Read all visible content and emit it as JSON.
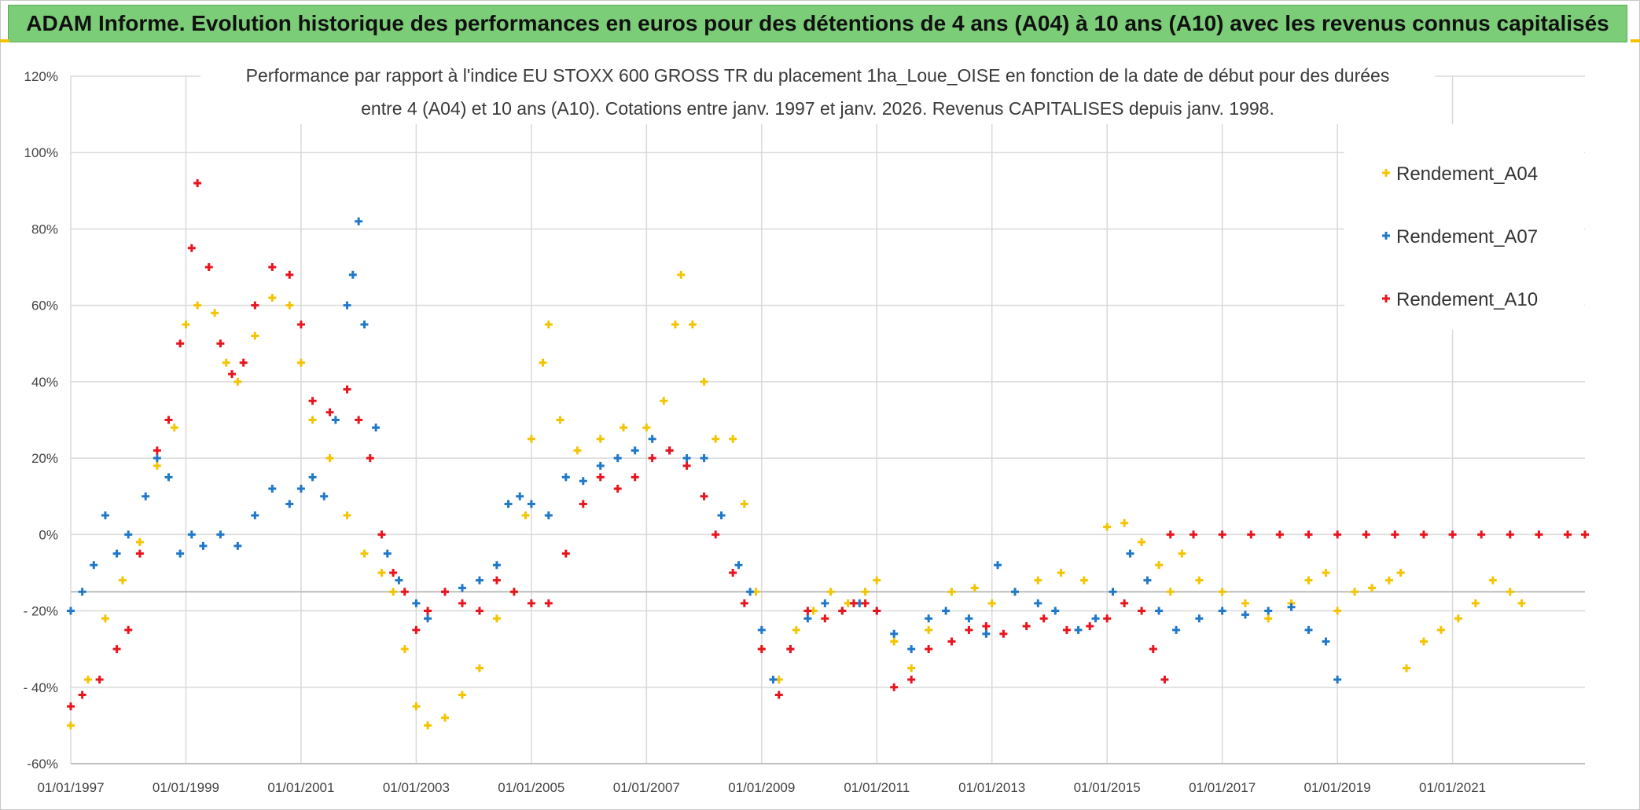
{
  "banner": {
    "title": "ADAM Informe. Evolution historique des performances en euros pour des détentions de 4 ans (A04) à 10 ans (A10) avec les revenus connus capitalisés"
  },
  "colors": {
    "banner_bg": "#7ccd78",
    "a04": "#f5c400",
    "a07": "#1f78c8",
    "a10": "#e8141e",
    "grid": "#d9d9d9"
  },
  "chart_data": {
    "type": "scatter",
    "title_line1": "Performance par rapport à l'indice EU STOXX 600 GROSS TR  du placement 1ha_Loue_OISE en fonction de la date de début pour des durées",
    "title_line2": "entre 4 (A04) et 10 ans (A10). Cotations entre janv. 1997 et janv. 2026. Revenus CAPITALISES depuis janv. 1998.",
    "xlabel": "",
    "ylabel": "",
    "xlim": [
      1997.0,
      2023.3
    ],
    "ylim": [
      -60,
      120
    ],
    "x_ticks": [
      1997,
      1999,
      2001,
      2003,
      2005,
      2007,
      2009,
      2011,
      2013,
      2015,
      2017,
      2019,
      2021
    ],
    "x_tick_labels": [
      "01/01/1997",
      "01/01/1999",
      "01/01/2001",
      "01/01/2003",
      "01/01/2005",
      "01/01/2007",
      "01/01/2009",
      "01/01/2011",
      "01/01/2013",
      "01/01/2015",
      "01/01/2017",
      "01/01/2019",
      "01/01/2021"
    ],
    "y_ticks": [
      -60,
      -40,
      -20,
      0,
      20,
      40,
      60,
      80,
      100,
      120
    ],
    "y_tick_labels": [
      "-60%",
      "- 40%",
      "- 20%",
      "0%",
      "20%",
      "40%",
      "60%",
      "80%",
      "100%",
      "120%"
    ],
    "legend_position": "top-right",
    "series": [
      {
        "name": "Rendement_A04",
        "points": [
          [
            1997.0,
            -50
          ],
          [
            1997.3,
            -38
          ],
          [
            1997.6,
            -22
          ],
          [
            1997.9,
            -12
          ],
          [
            1998.2,
            -2
          ],
          [
            1998.5,
            18
          ],
          [
            1998.8,
            28
          ],
          [
            1999.0,
            55
          ],
          [
            1999.2,
            60
          ],
          [
            1999.5,
            58
          ],
          [
            1999.7,
            45
          ],
          [
            1999.9,
            40
          ],
          [
            2000.2,
            52
          ],
          [
            2000.5,
            62
          ],
          [
            2000.8,
            60
          ],
          [
            2001.0,
            45
          ],
          [
            2001.2,
            30
          ],
          [
            2001.5,
            20
          ],
          [
            2001.8,
            5
          ],
          [
            2002.1,
            -5
          ],
          [
            2002.4,
            -10
          ],
          [
            2002.6,
            -15
          ],
          [
            2002.8,
            -30
          ],
          [
            2003.0,
            -45
          ],
          [
            2003.2,
            -50
          ],
          [
            2003.5,
            -48
          ],
          [
            2003.8,
            -42
          ],
          [
            2004.1,
            -35
          ],
          [
            2004.4,
            -22
          ],
          [
            2004.7,
            -15
          ],
          [
            2004.9,
            5
          ],
          [
            2005.0,
            25
          ],
          [
            2005.2,
            45
          ],
          [
            2005.3,
            55
          ],
          [
            2005.5,
            30
          ],
          [
            2005.8,
            22
          ],
          [
            2006.2,
            25
          ],
          [
            2006.6,
            28
          ],
          [
            2007.0,
            28
          ],
          [
            2007.3,
            35
          ],
          [
            2007.5,
            55
          ],
          [
            2007.6,
            68
          ],
          [
            2007.8,
            55
          ],
          [
            2008.0,
            40
          ],
          [
            2008.2,
            25
          ],
          [
            2008.5,
            25
          ],
          [
            2008.7,
            8
          ],
          [
            2008.9,
            -15
          ],
          [
            2009.0,
            -30
          ],
          [
            2009.3,
            -38
          ],
          [
            2009.6,
            -25
          ],
          [
            2009.9,
            -20
          ],
          [
            2010.2,
            -15
          ],
          [
            2010.5,
            -18
          ],
          [
            2010.8,
            -15
          ],
          [
            2011.0,
            -12
          ],
          [
            2011.3,
            -28
          ],
          [
            2011.6,
            -35
          ],
          [
            2011.9,
            -25
          ],
          [
            2012.3,
            -15
          ],
          [
            2012.7,
            -14
          ],
          [
            2013.0,
            -18
          ],
          [
            2013.4,
            -15
          ],
          [
            2013.8,
            -12
          ],
          [
            2014.2,
            -10
          ],
          [
            2014.6,
            -12
          ],
          [
            2015.0,
            2
          ],
          [
            2015.3,
            3
          ],
          [
            2015.6,
            -2
          ],
          [
            2015.9,
            -8
          ],
          [
            2016.1,
            -15
          ],
          [
            2016.3,
            -5
          ],
          [
            2016.6,
            -12
          ],
          [
            2017.0,
            -15
          ],
          [
            2017.4,
            -18
          ],
          [
            2017.8,
            -22
          ],
          [
            2018.2,
            -18
          ],
          [
            2018.5,
            -12
          ],
          [
            2018.8,
            -10
          ],
          [
            2019.0,
            -20
          ],
          [
            2019.3,
            -15
          ],
          [
            2019.6,
            -14
          ],
          [
            2019.9,
            -12
          ],
          [
            2020.1,
            -10
          ],
          [
            2020.2,
            -35
          ],
          [
            2020.5,
            -28
          ],
          [
            2020.8,
            -25
          ],
          [
            2021.1,
            -22
          ],
          [
            2021.4,
            -18
          ],
          [
            2021.7,
            -12
          ],
          [
            2022.0,
            -15
          ],
          [
            2022.2,
            -18
          ]
        ]
      },
      {
        "name": "Rendement_A07",
        "points": [
          [
            1997.0,
            -20
          ],
          [
            1997.2,
            -15
          ],
          [
            1997.4,
            -8
          ],
          [
            1997.6,
            5
          ],
          [
            1997.8,
            -5
          ],
          [
            1998.0,
            0
          ],
          [
            1998.3,
            10
          ],
          [
            1998.5,
            20
          ],
          [
            1998.7,
            15
          ],
          [
            1998.9,
            -5
          ],
          [
            1999.1,
            0
          ],
          [
            1999.3,
            -3
          ],
          [
            1999.6,
            0
          ],
          [
            1999.9,
            -3
          ],
          [
            2000.2,
            5
          ],
          [
            2000.5,
            12
          ],
          [
            2000.8,
            8
          ],
          [
            2001.0,
            12
          ],
          [
            2001.2,
            15
          ],
          [
            2001.4,
            10
          ],
          [
            2001.6,
            30
          ],
          [
            2001.8,
            60
          ],
          [
            2001.9,
            68
          ],
          [
            2002.0,
            82
          ],
          [
            2002.1,
            55
          ],
          [
            2002.3,
            28
          ],
          [
            2002.5,
            -5
          ],
          [
            2002.7,
            -12
          ],
          [
            2003.0,
            -18
          ],
          [
            2003.2,
            -22
          ],
          [
            2003.5,
            -15
          ],
          [
            2003.8,
            -14
          ],
          [
            2004.1,
            -12
          ],
          [
            2004.4,
            -8
          ],
          [
            2004.6,
            8
          ],
          [
            2004.8,
            10
          ],
          [
            2005.0,
            8
          ],
          [
            2005.3,
            5
          ],
          [
            2005.6,
            15
          ],
          [
            2005.9,
            14
          ],
          [
            2006.2,
            18
          ],
          [
            2006.5,
            20
          ],
          [
            2006.8,
            22
          ],
          [
            2007.1,
            25
          ],
          [
            2007.4,
            22
          ],
          [
            2007.7,
            20
          ],
          [
            2008.0,
            20
          ],
          [
            2008.3,
            5
          ],
          [
            2008.6,
            -8
          ],
          [
            2008.8,
            -15
          ],
          [
            2009.0,
            -25
          ],
          [
            2009.2,
            -38
          ],
          [
            2009.5,
            -30
          ],
          [
            2009.8,
            -22
          ],
          [
            2010.1,
            -18
          ],
          [
            2010.4,
            -20
          ],
          [
            2010.7,
            -18
          ],
          [
            2011.0,
            -20
          ],
          [
            2011.3,
            -26
          ],
          [
            2011.6,
            -30
          ],
          [
            2011.9,
            -22
          ],
          [
            2012.2,
            -20
          ],
          [
            2012.6,
            -22
          ],
          [
            2012.9,
            -26
          ],
          [
            2013.1,
            -8
          ],
          [
            2013.4,
            -15
          ],
          [
            2013.8,
            -18
          ],
          [
            2014.1,
            -20
          ],
          [
            2014.5,
            -25
          ],
          [
            2014.8,
            -22
          ],
          [
            2015.1,
            -15
          ],
          [
            2015.4,
            -5
          ],
          [
            2015.7,
            -12
          ],
          [
            2015.9,
            -20
          ],
          [
            2016.2,
            -25
          ],
          [
            2016.6,
            -22
          ],
          [
            2017.0,
            -20
          ],
          [
            2017.4,
            -21
          ],
          [
            2017.8,
            -20
          ],
          [
            2018.2,
            -19
          ],
          [
            2018.5,
            -25
          ],
          [
            2018.8,
            -28
          ],
          [
            2019.0,
            -38
          ]
        ]
      },
      {
        "name": "Rendement_A10",
        "points": [
          [
            1997.0,
            -45
          ],
          [
            1997.2,
            -42
          ],
          [
            1997.5,
            -38
          ],
          [
            1997.8,
            -30
          ],
          [
            1998.0,
            -25
          ],
          [
            1998.2,
            -5
          ],
          [
            1998.5,
            22
          ],
          [
            1998.7,
            30
          ],
          [
            1998.9,
            50
          ],
          [
            1999.1,
            75
          ],
          [
            1999.2,
            92
          ],
          [
            1999.4,
            70
          ],
          [
            1999.6,
            50
          ],
          [
            1999.8,
            42
          ],
          [
            2000.0,
            45
          ],
          [
            2000.2,
            60
          ],
          [
            2000.5,
            70
          ],
          [
            2000.8,
            68
          ],
          [
            2001.0,
            55
          ],
          [
            2001.2,
            35
          ],
          [
            2001.5,
            32
          ],
          [
            2001.8,
            38
          ],
          [
            2002.0,
            30
          ],
          [
            2002.2,
            20
          ],
          [
            2002.4,
            0
          ],
          [
            2002.6,
            -10
          ],
          [
            2002.8,
            -15
          ],
          [
            2003.0,
            -25
          ],
          [
            2003.2,
            -20
          ],
          [
            2003.5,
            -15
          ],
          [
            2003.8,
            -18
          ],
          [
            2004.1,
            -20
          ],
          [
            2004.4,
            -12
          ],
          [
            2004.7,
            -15
          ],
          [
            2005.0,
            -18
          ],
          [
            2005.3,
            -18
          ],
          [
            2005.6,
            -5
          ],
          [
            2005.9,
            8
          ],
          [
            2006.2,
            15
          ],
          [
            2006.5,
            12
          ],
          [
            2006.8,
            15
          ],
          [
            2007.1,
            20
          ],
          [
            2007.4,
            22
          ],
          [
            2007.7,
            18
          ],
          [
            2008.0,
            10
          ],
          [
            2008.2,
            0
          ],
          [
            2008.5,
            -10
          ],
          [
            2008.7,
            -18
          ],
          [
            2009.0,
            -30
          ],
          [
            2009.3,
            -42
          ],
          [
            2009.5,
            -30
          ],
          [
            2009.8,
            -20
          ],
          [
            2010.1,
            -22
          ],
          [
            2010.4,
            -20
          ],
          [
            2010.6,
            -18
          ],
          [
            2010.8,
            -18
          ],
          [
            2011.0,
            -20
          ],
          [
            2011.3,
            -40
          ],
          [
            2011.6,
            -38
          ],
          [
            2011.9,
            -30
          ],
          [
            2012.3,
            -28
          ],
          [
            2012.6,
            -25
          ],
          [
            2012.9,
            -24
          ],
          [
            2013.2,
            -26
          ],
          [
            2013.6,
            -24
          ],
          [
            2013.9,
            -22
          ],
          [
            2014.3,
            -25
          ],
          [
            2014.7,
            -24
          ],
          [
            2015.0,
            -22
          ],
          [
            2015.3,
            -18
          ],
          [
            2015.6,
            -20
          ],
          [
            2015.8,
            -30
          ],
          [
            2016.0,
            -38
          ],
          [
            2016.1,
            0
          ],
          [
            2016.5,
            0
          ],
          [
            2017.0,
            0
          ],
          [
            2017.5,
            0
          ],
          [
            2018.0,
            0
          ],
          [
            2018.5,
            0
          ],
          [
            2019.0,
            0
          ],
          [
            2019.5,
            0
          ],
          [
            2020.0,
            0
          ],
          [
            2020.5,
            0
          ],
          [
            2021.0,
            0
          ],
          [
            2021.5,
            0
          ],
          [
            2022.0,
            0
          ],
          [
            2022.5,
            0
          ],
          [
            2023.0,
            0
          ],
          [
            2023.3,
            0
          ]
        ]
      }
    ],
    "reference_line_y": -15
  }
}
